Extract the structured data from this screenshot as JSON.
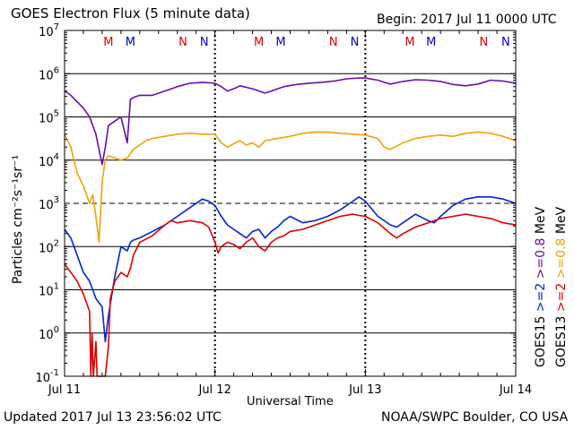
{
  "header": {
    "title": "GOES Electron Flux (5 minute data)",
    "begin": "Begin: 2017 Jul 11 0000 UTC"
  },
  "footer": {
    "updated": "Updated 2017 Jul 13 23:56:02 UTC",
    "credit": "NOAA/SWPC Boulder, CO USA"
  },
  "chart_data": {
    "type": "line",
    "xlabel": "Universal Time",
    "ylabel": "Particles cm⁻²s⁻¹sr⁻¹",
    "yscale": "log",
    "ylim_exp": [
      -1,
      7
    ],
    "x_range_hours": [
      0,
      72
    ],
    "x_ticks": [
      {
        "hour": 0,
        "label": "Jul 11"
      },
      {
        "hour": 24,
        "label": "Jul 12"
      },
      {
        "hour": 48,
        "label": "Jul 13"
      },
      {
        "hour": 72,
        "label": "Jul 14"
      }
    ],
    "y_ticks": [
      {
        "exp": 7,
        "base": "10",
        "sup": "7"
      },
      {
        "exp": 6,
        "base": "10",
        "sup": "6"
      },
      {
        "exp": 5,
        "base": "10",
        "sup": "5"
      },
      {
        "exp": 4,
        "base": "10",
        "sup": "4"
      },
      {
        "exp": 3,
        "base": "10",
        "sup": "3"
      },
      {
        "exp": 2,
        "base": "10",
        "sup": "2"
      },
      {
        "exp": 1,
        "base": "10",
        "sup": "1"
      },
      {
        "exp": 0,
        "base": "10",
        "sup": "0"
      },
      {
        "exp": -1,
        "base": "10",
        "sup": "-1"
      }
    ],
    "threshold_exp": 3,
    "grid": true,
    "markers": [
      {
        "hour": 7.0,
        "label": "M",
        "color": "#dd0000"
      },
      {
        "hour": 10.5,
        "label": "M",
        "color": "#0000cc"
      },
      {
        "hour": 18.9,
        "label": "N",
        "color": "#dd0000"
      },
      {
        "hour": 22.3,
        "label": "N",
        "color": "#0000cc"
      },
      {
        "hour": 31.0,
        "label": "M",
        "color": "#dd0000"
      },
      {
        "hour": 34.5,
        "label": "M",
        "color": "#0000cc"
      },
      {
        "hour": 42.9,
        "label": "N",
        "color": "#dd0000"
      },
      {
        "hour": 46.3,
        "label": "N",
        "color": "#0000cc"
      },
      {
        "hour": 55.1,
        "label": "M",
        "color": "#dd0000"
      },
      {
        "hour": 58.5,
        "label": "M",
        "color": "#0000cc"
      },
      {
        "hour": 66.9,
        "label": "N",
        "color": "#dd0000"
      },
      {
        "hour": 70.4,
        "label": "N",
        "color": "#0000cc"
      }
    ],
    "right_legend": {
      "goes15": "GOES15",
      "goes13": "GOES13",
      "ge2_a": ">=2",
      "ge2_b": ">=2",
      "ge08_a": ">=0.8",
      "ge08_b": ">=0.8",
      "mev_a": "MeV",
      "mev_b": "MeV"
    },
    "series": [
      {
        "name": "GOES15 >=0.8 MeV",
        "color": "#6a0dad",
        "points": [
          [
            0,
            5.6
          ],
          [
            1,
            5.5
          ],
          [
            2,
            5.35
          ],
          [
            3,
            5.2
          ],
          [
            4,
            5.0
          ],
          [
            5,
            4.6
          ],
          [
            6,
            3.9
          ],
          [
            6.5,
            4.3
          ],
          [
            7,
            4.8
          ],
          [
            8,
            4.9
          ],
          [
            9,
            5.0
          ],
          [
            10,
            4.4
          ],
          [
            10.5,
            5.4
          ],
          [
            11,
            5.45
          ],
          [
            12,
            5.5
          ],
          [
            14,
            5.5
          ],
          [
            16,
            5.6
          ],
          [
            18,
            5.7
          ],
          [
            20,
            5.78
          ],
          [
            22,
            5.8
          ],
          [
            24,
            5.78
          ],
          [
            25,
            5.7
          ],
          [
            26,
            5.6
          ],
          [
            27,
            5.65
          ],
          [
            28,
            5.72
          ],
          [
            30,
            5.65
          ],
          [
            32,
            5.55
          ],
          [
            33,
            5.6
          ],
          [
            35,
            5.7
          ],
          [
            37,
            5.75
          ],
          [
            39,
            5.78
          ],
          [
            41,
            5.8
          ],
          [
            43,
            5.83
          ],
          [
            45,
            5.88
          ],
          [
            47,
            5.9
          ],
          [
            48,
            5.9
          ],
          [
            50,
            5.85
          ],
          [
            51,
            5.8
          ],
          [
            52,
            5.76
          ],
          [
            54,
            5.82
          ],
          [
            56,
            5.86
          ],
          [
            58,
            5.85
          ],
          [
            60,
            5.82
          ],
          [
            62,
            5.75
          ],
          [
            64,
            5.72
          ],
          [
            66,
            5.76
          ],
          [
            68,
            5.85
          ],
          [
            70,
            5.83
          ],
          [
            72,
            5.78
          ]
        ]
      },
      {
        "name": "GOES13 >=0.8 MeV",
        "color": "#f5a000",
        "points": [
          [
            0,
            4.6
          ],
          [
            1,
            4.3
          ],
          [
            2,
            3.7
          ],
          [
            3,
            3.4
          ],
          [
            4,
            3.0
          ],
          [
            4.5,
            3.2
          ],
          [
            5,
            2.7
          ],
          [
            5.5,
            2.1
          ],
          [
            6,
            3.5
          ],
          [
            6.5,
            4.0
          ],
          [
            7,
            4.1
          ],
          [
            8,
            4.05
          ],
          [
            9,
            4.0
          ],
          [
            10,
            4.05
          ],
          [
            10.5,
            4.15
          ],
          [
            11,
            4.25
          ],
          [
            12,
            4.35
          ],
          [
            13,
            4.45
          ],
          [
            14,
            4.5
          ],
          [
            16,
            4.55
          ],
          [
            18,
            4.6
          ],
          [
            20,
            4.62
          ],
          [
            22,
            4.6
          ],
          [
            24,
            4.6
          ],
          [
            25,
            4.4
          ],
          [
            26,
            4.3
          ],
          [
            27,
            4.38
          ],
          [
            28,
            4.45
          ],
          [
            29,
            4.35
          ],
          [
            30,
            4.4
          ],
          [
            31,
            4.3
          ],
          [
            32,
            4.45
          ],
          [
            34,
            4.5
          ],
          [
            36,
            4.55
          ],
          [
            38,
            4.62
          ],
          [
            40,
            4.65
          ],
          [
            42,
            4.65
          ],
          [
            44,
            4.62
          ],
          [
            46,
            4.6
          ],
          [
            48,
            4.58
          ],
          [
            50,
            4.5
          ],
          [
            51,
            4.3
          ],
          [
            52,
            4.25
          ],
          [
            54,
            4.4
          ],
          [
            56,
            4.5
          ],
          [
            58,
            4.55
          ],
          [
            60,
            4.58
          ],
          [
            62,
            4.55
          ],
          [
            64,
            4.62
          ],
          [
            66,
            4.65
          ],
          [
            68,
            4.62
          ],
          [
            70,
            4.55
          ],
          [
            72,
            4.45
          ]
        ]
      },
      {
        "name": "GOES15 >=2 MeV",
        "color": "#0022dd",
        "points": [
          [
            0,
            2.4
          ],
          [
            1,
            2.2
          ],
          [
            2,
            1.8
          ],
          [
            3,
            1.4
          ],
          [
            4,
            1.2
          ],
          [
            5,
            0.8
          ],
          [
            6,
            0.6
          ],
          [
            6.5,
            -0.2
          ],
          [
            7,
            0.4
          ],
          [
            8,
            1.3
          ],
          [
            9,
            2.0
          ],
          [
            10,
            1.9
          ],
          [
            10.5,
            2.1
          ],
          [
            11,
            2.15
          ],
          [
            12,
            2.2
          ],
          [
            14,
            2.35
          ],
          [
            16,
            2.5
          ],
          [
            18,
            2.7
          ],
          [
            20,
            2.9
          ],
          [
            22,
            3.1
          ],
          [
            23,
            3.05
          ],
          [
            24,
            2.95
          ],
          [
            25,
            2.7
          ],
          [
            26,
            2.5
          ],
          [
            27,
            2.4
          ],
          [
            28,
            2.3
          ],
          [
            29,
            2.2
          ],
          [
            30,
            2.35
          ],
          [
            31,
            2.4
          ],
          [
            32,
            2.2
          ],
          [
            33,
            2.35
          ],
          [
            34,
            2.45
          ],
          [
            35,
            2.6
          ],
          [
            36,
            2.7
          ],
          [
            38,
            2.55
          ],
          [
            40,
            2.6
          ],
          [
            42,
            2.7
          ],
          [
            44,
            2.85
          ],
          [
            46,
            3.05
          ],
          [
            47,
            3.15
          ],
          [
            48,
            3.05
          ],
          [
            50,
            2.7
          ],
          [
            52,
            2.5
          ],
          [
            53,
            2.45
          ],
          [
            54,
            2.55
          ],
          [
            56,
            2.75
          ],
          [
            58,
            2.6
          ],
          [
            59,
            2.55
          ],
          [
            60,
            2.7
          ],
          [
            62,
            2.95
          ],
          [
            64,
            3.1
          ],
          [
            66,
            3.15
          ],
          [
            68,
            3.15
          ],
          [
            70,
            3.1
          ],
          [
            72,
            3.0
          ]
        ]
      },
      {
        "name": "GOES13 >=2 MeV",
        "color": "#dd0000",
        "points": [
          [
            0,
            1.6
          ],
          [
            1,
            1.4
          ],
          [
            2,
            1.2
          ],
          [
            3,
            0.9
          ],
          [
            4,
            0.5
          ],
          [
            4.2,
            -1
          ],
          [
            4.4,
            0
          ],
          [
            4.6,
            -1
          ],
          [
            5,
            -0.2
          ],
          [
            5.2,
            -1
          ],
          [
            5.5,
            -1
          ],
          [
            6,
            -1
          ],
          [
            6.5,
            -1
          ],
          [
            7,
            -0.3
          ],
          [
            7.3,
            0.8
          ],
          [
            8,
            1.2
          ],
          [
            9,
            1.4
          ],
          [
            10,
            1.3
          ],
          [
            10.5,
            1.5
          ],
          [
            11,
            1.8
          ],
          [
            12,
            2.1
          ],
          [
            14,
            2.25
          ],
          [
            16,
            2.5
          ],
          [
            17,
            2.6
          ],
          [
            18,
            2.55
          ],
          [
            20,
            2.6
          ],
          [
            22,
            2.55
          ],
          [
            23,
            2.45
          ],
          [
            24,
            2.1
          ],
          [
            24.5,
            1.85
          ],
          [
            25,
            2.0
          ],
          [
            26,
            2.1
          ],
          [
            27,
            2.05
          ],
          [
            28,
            1.95
          ],
          [
            29,
            2.1
          ],
          [
            30,
            2.2
          ],
          [
            31,
            2.0
          ],
          [
            32,
            1.9
          ],
          [
            33,
            2.1
          ],
          [
            34,
            2.2
          ],
          [
            35,
            2.25
          ],
          [
            36,
            2.35
          ],
          [
            38,
            2.4
          ],
          [
            40,
            2.5
          ],
          [
            42,
            2.6
          ],
          [
            44,
            2.7
          ],
          [
            46,
            2.75
          ],
          [
            47,
            2.72
          ],
          [
            48,
            2.7
          ],
          [
            50,
            2.55
          ],
          [
            52,
            2.3
          ],
          [
            53,
            2.2
          ],
          [
            54,
            2.3
          ],
          [
            56,
            2.45
          ],
          [
            58,
            2.55
          ],
          [
            60,
            2.65
          ],
          [
            62,
            2.7
          ],
          [
            64,
            2.75
          ],
          [
            66,
            2.7
          ],
          [
            68,
            2.65
          ],
          [
            70,
            2.55
          ],
          [
            72,
            2.5
          ]
        ]
      }
    ]
  }
}
